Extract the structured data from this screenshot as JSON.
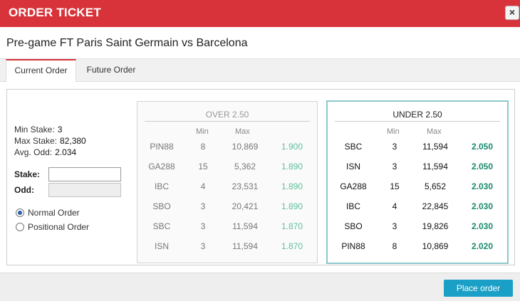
{
  "window": {
    "title": "ORDER TICKET",
    "close_symbol": "×",
    "close_icon": "close-icon"
  },
  "match": {
    "title": "Pre-game FT Paris Saint Germain vs Barcelona"
  },
  "tabs": [
    {
      "label": "Current Order",
      "active": true
    },
    {
      "label": "Future Order",
      "active": false
    }
  ],
  "order_info": {
    "min_stake_label": "Min Stake:",
    "min_stake": "3",
    "max_stake_label": "Max Stake:",
    "max_stake": "82,380",
    "avg_odd_label": "Avg. Odd:",
    "avg_odd": "2.034",
    "stake_label": "Stake:",
    "stake_value": "",
    "odd_label": "Odd:",
    "odd_value": ""
  },
  "order_type": {
    "options": [
      {
        "label": "Normal Order",
        "checked": true
      },
      {
        "label": "Positional Order",
        "checked": false
      }
    ]
  },
  "over": {
    "heading": "OVER 2.50",
    "min_header": "Min",
    "max_header": "Max",
    "rows": [
      {
        "book": "PIN88",
        "min": "8",
        "max": "10,869",
        "odd": "1.900"
      },
      {
        "book": "GA288",
        "min": "15",
        "max": "5,362",
        "odd": "1.890"
      },
      {
        "book": "IBC",
        "min": "4",
        "max": "23,531",
        "odd": "1.890"
      },
      {
        "book": "SBO",
        "min": "3",
        "max": "20,421",
        "odd": "1.890"
      },
      {
        "book": "SBC",
        "min": "3",
        "max": "11,594",
        "odd": "1.870"
      },
      {
        "book": "ISN",
        "min": "3",
        "max": "11,594",
        "odd": "1.870"
      }
    ]
  },
  "under": {
    "heading": "UNDER 2.50",
    "min_header": "Min",
    "max_header": "Max",
    "rows": [
      {
        "book": "SBC",
        "min": "3",
        "max": "11,594",
        "odd": "2.050"
      },
      {
        "book": "ISN",
        "min": "3",
        "max": "11,594",
        "odd": "2.050"
      },
      {
        "book": "GA288",
        "min": "15",
        "max": "5,652",
        "odd": "2.030"
      },
      {
        "book": "IBC",
        "min": "4",
        "max": "22,845",
        "odd": "2.030"
      },
      {
        "book": "SBO",
        "min": "3",
        "max": "19,826",
        "odd": "2.030"
      },
      {
        "book": "PIN88",
        "min": "8",
        "max": "10,869",
        "odd": "2.020"
      }
    ]
  },
  "footer": {
    "place_order_label": "Place order"
  },
  "colors": {
    "header_red": "#d8333a",
    "accent_blue": "#1aa0c6",
    "under_border": "#8cc8cc",
    "odd_green_dark": "#1a8a6f",
    "odd_green_light": "#5fbf9a"
  }
}
